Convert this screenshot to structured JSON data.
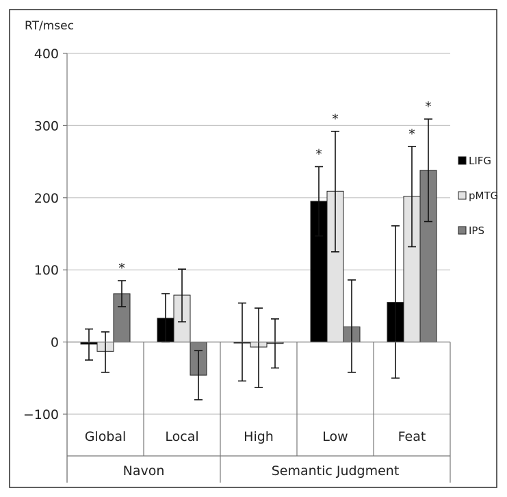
{
  "chart_data": {
    "type": "bar",
    "ylabel": "RT/msec",
    "ylim": [
      -100,
      400
    ],
    "yticks": [
      -100,
      0,
      100,
      200,
      300,
      400
    ],
    "ytick_labels": [
      "−100",
      "0",
      "100",
      "200",
      "300",
      "400"
    ],
    "grid": true,
    "legend_position": "right",
    "categories": [
      "Global",
      "Local",
      "High",
      "Low",
      "Feat"
    ],
    "groups": [
      {
        "label": "Navon",
        "categories": [
          "Global",
          "Local"
        ]
      },
      {
        "label": "Semantic Judgment",
        "categories": [
          "High",
          "Low",
          "Feat"
        ]
      }
    ],
    "series": [
      {
        "name": "LIFG",
        "color": "#000000",
        "values": [
          -3,
          33,
          0,
          195,
          55
        ],
        "err_low": [
          -25,
          0,
          -54,
          147,
          -50
        ],
        "err_high": [
          18,
          67,
          54,
          243,
          161
        ],
        "sig": [
          false,
          false,
          false,
          true,
          false
        ]
      },
      {
        "name": "pMTG",
        "color": "#e3e3e3",
        "values": [
          -13,
          65,
          -7,
          209,
          202
        ],
        "err_low": [
          -42,
          28,
          -63,
          125,
          132
        ],
        "err_high": [
          14,
          101,
          47,
          292,
          271
        ],
        "sig": [
          false,
          false,
          false,
          true,
          true
        ]
      },
      {
        "name": "IPS",
        "color": "#7f7f7f",
        "values": [
          67,
          -46,
          -2,
          21,
          238
        ],
        "err_low": [
          49,
          -80,
          -36,
          -42,
          167
        ],
        "err_high": [
          85,
          -12,
          32,
          86,
          309
        ],
        "sig": [
          true,
          false,
          false,
          false,
          true
        ]
      }
    ],
    "significance_marker": "*"
  }
}
